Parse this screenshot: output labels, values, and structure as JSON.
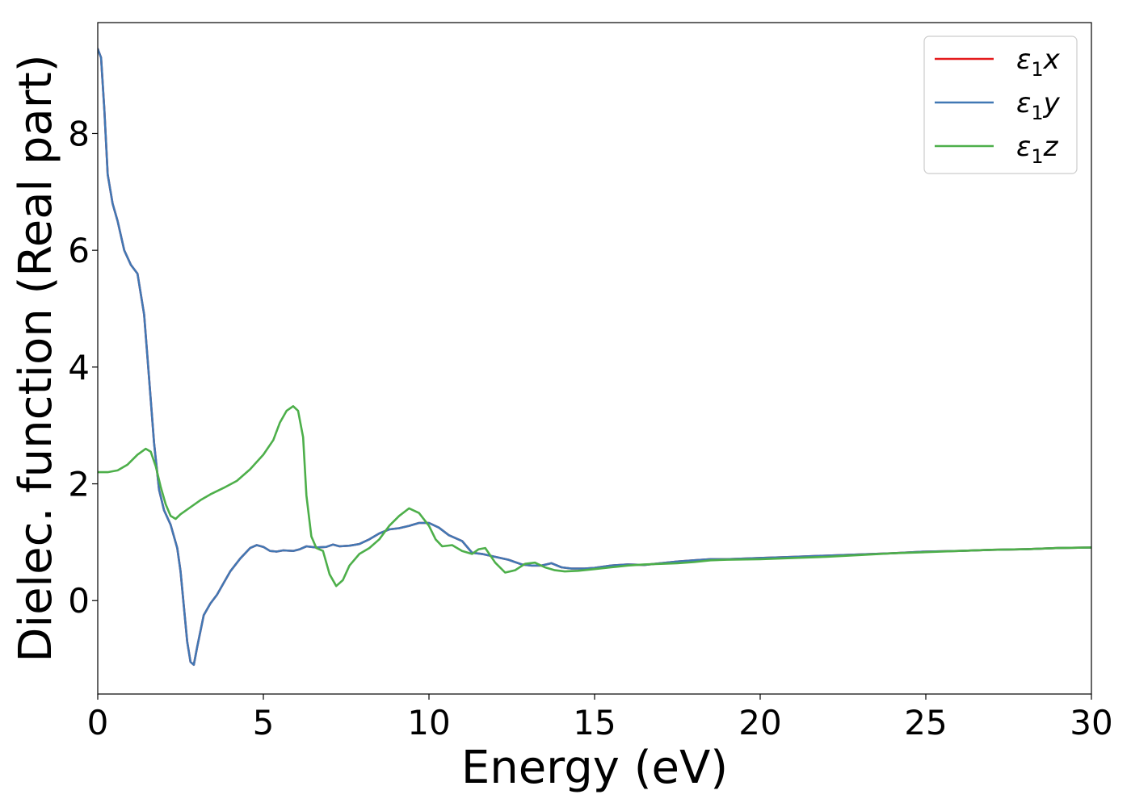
{
  "chart_data": {
    "type": "line",
    "xlabel": "Energy (eV)",
    "ylabel": "Dielec. function (Real part)",
    "xlim": [
      0,
      30
    ],
    "ylim": [
      -1.6,
      9.9
    ],
    "xticks": [
      0,
      5,
      10,
      15,
      20,
      25,
      30
    ],
    "yticks": [
      0,
      2,
      4,
      6,
      8
    ],
    "grid": false,
    "legend": "top-right",
    "series": [
      {
        "name": "ε₁x",
        "legend_base": "ε",
        "legend_sub": "1",
        "legend_var": "x",
        "color": "#e41a1c",
        "points": [
          [
            0,
            9.45
          ],
          [
            0.1,
            9.3
          ],
          [
            0.2,
            8.4
          ],
          [
            0.3,
            7.3
          ],
          [
            0.45,
            6.8
          ],
          [
            0.6,
            6.5
          ],
          [
            0.8,
            6.0
          ],
          [
            1.0,
            5.75
          ],
          [
            1.2,
            5.6
          ],
          [
            1.4,
            4.9
          ],
          [
            1.55,
            3.8
          ],
          [
            1.7,
            2.7
          ],
          [
            1.85,
            1.9
          ],
          [
            2.0,
            1.55
          ],
          [
            2.2,
            1.3
          ],
          [
            2.4,
            0.9
          ],
          [
            2.5,
            0.5
          ],
          [
            2.6,
            -0.1
          ],
          [
            2.7,
            -0.7
          ],
          [
            2.8,
            -1.05
          ],
          [
            2.9,
            -1.1
          ],
          [
            3.0,
            -0.8
          ],
          [
            3.2,
            -0.25
          ],
          [
            3.4,
            -0.05
          ],
          [
            3.6,
            0.1
          ],
          [
            3.8,
            0.3
          ],
          [
            4.0,
            0.5
          ],
          [
            4.3,
            0.72
          ],
          [
            4.6,
            0.9
          ],
          [
            4.8,
            0.95
          ],
          [
            5.0,
            0.92
          ],
          [
            5.2,
            0.85
          ],
          [
            5.4,
            0.84
          ],
          [
            5.6,
            0.86
          ],
          [
            5.9,
            0.85
          ],
          [
            6.1,
            0.88
          ],
          [
            6.3,
            0.93
          ],
          [
            6.6,
            0.91
          ],
          [
            6.9,
            0.92
          ],
          [
            7.1,
            0.96
          ],
          [
            7.3,
            0.93
          ],
          [
            7.6,
            0.94
          ],
          [
            7.9,
            0.97
          ],
          [
            8.2,
            1.05
          ],
          [
            8.5,
            1.15
          ],
          [
            8.8,
            1.22
          ],
          [
            9.1,
            1.24
          ],
          [
            9.4,
            1.28
          ],
          [
            9.7,
            1.33
          ],
          [
            10.0,
            1.33
          ],
          [
            10.3,
            1.25
          ],
          [
            10.6,
            1.12
          ],
          [
            11.0,
            1.02
          ],
          [
            11.3,
            0.82
          ],
          [
            11.6,
            0.8
          ],
          [
            12.0,
            0.75
          ],
          [
            12.4,
            0.7
          ],
          [
            12.8,
            0.62
          ],
          [
            13.1,
            0.6
          ],
          [
            13.4,
            0.6
          ],
          [
            13.7,
            0.64
          ],
          [
            14.0,
            0.57
          ],
          [
            14.3,
            0.55
          ],
          [
            14.7,
            0.55
          ],
          [
            15.0,
            0.56
          ],
          [
            15.5,
            0.6
          ],
          [
            16.0,
            0.62
          ],
          [
            16.5,
            0.61
          ],
          [
            17.0,
            0.64
          ],
          [
            17.5,
            0.67
          ],
          [
            18.0,
            0.69
          ],
          [
            18.5,
            0.71
          ],
          [
            19.0,
            0.71
          ],
          [
            19.5,
            0.72
          ],
          [
            20.0,
            0.73
          ],
          [
            21.0,
            0.75
          ],
          [
            22.0,
            0.77
          ],
          [
            23.0,
            0.79
          ],
          [
            24.0,
            0.81
          ],
          [
            25.0,
            0.84
          ],
          [
            26.0,
            0.85
          ],
          [
            27.0,
            0.87
          ],
          [
            28.0,
            0.88
          ],
          [
            29.0,
            0.9
          ],
          [
            30.0,
            0.91
          ]
        ]
      },
      {
        "name": "ε₁y",
        "legend_base": "ε",
        "legend_sub": "1",
        "legend_var": "y",
        "color": "#4178b4",
        "points": [
          [
            0,
            9.45
          ],
          [
            0.1,
            9.3
          ],
          [
            0.2,
            8.4
          ],
          [
            0.3,
            7.3
          ],
          [
            0.45,
            6.8
          ],
          [
            0.6,
            6.5
          ],
          [
            0.8,
            6.0
          ],
          [
            1.0,
            5.75
          ],
          [
            1.2,
            5.6
          ],
          [
            1.4,
            4.9
          ],
          [
            1.55,
            3.8
          ],
          [
            1.7,
            2.7
          ],
          [
            1.85,
            1.9
          ],
          [
            2.0,
            1.55
          ],
          [
            2.2,
            1.3
          ],
          [
            2.4,
            0.9
          ],
          [
            2.5,
            0.5
          ],
          [
            2.6,
            -0.1
          ],
          [
            2.7,
            -0.7
          ],
          [
            2.8,
            -1.05
          ],
          [
            2.9,
            -1.1
          ],
          [
            3.0,
            -0.8
          ],
          [
            3.2,
            -0.25
          ],
          [
            3.4,
            -0.05
          ],
          [
            3.6,
            0.1
          ],
          [
            3.8,
            0.3
          ],
          [
            4.0,
            0.5
          ],
          [
            4.3,
            0.72
          ],
          [
            4.6,
            0.9
          ],
          [
            4.8,
            0.95
          ],
          [
            5.0,
            0.92
          ],
          [
            5.2,
            0.85
          ],
          [
            5.4,
            0.84
          ],
          [
            5.6,
            0.86
          ],
          [
            5.9,
            0.85
          ],
          [
            6.1,
            0.88
          ],
          [
            6.3,
            0.93
          ],
          [
            6.6,
            0.91
          ],
          [
            6.9,
            0.92
          ],
          [
            7.1,
            0.96
          ],
          [
            7.3,
            0.93
          ],
          [
            7.6,
            0.94
          ],
          [
            7.9,
            0.97
          ],
          [
            8.2,
            1.05
          ],
          [
            8.5,
            1.15
          ],
          [
            8.8,
            1.22
          ],
          [
            9.1,
            1.24
          ],
          [
            9.4,
            1.28
          ],
          [
            9.7,
            1.33
          ],
          [
            10.0,
            1.33
          ],
          [
            10.3,
            1.25
          ],
          [
            10.6,
            1.12
          ],
          [
            11.0,
            1.02
          ],
          [
            11.3,
            0.82
          ],
          [
            11.6,
            0.8
          ],
          [
            12.0,
            0.75
          ],
          [
            12.4,
            0.7
          ],
          [
            12.8,
            0.62
          ],
          [
            13.1,
            0.6
          ],
          [
            13.4,
            0.6
          ],
          [
            13.7,
            0.64
          ],
          [
            14.0,
            0.57
          ],
          [
            14.3,
            0.55
          ],
          [
            14.7,
            0.55
          ],
          [
            15.0,
            0.56
          ],
          [
            15.5,
            0.6
          ],
          [
            16.0,
            0.62
          ],
          [
            16.5,
            0.61
          ],
          [
            17.0,
            0.64
          ],
          [
            17.5,
            0.67
          ],
          [
            18.0,
            0.69
          ],
          [
            18.5,
            0.71
          ],
          [
            19.0,
            0.71
          ],
          [
            19.5,
            0.72
          ],
          [
            20.0,
            0.73
          ],
          [
            21.0,
            0.75
          ],
          [
            22.0,
            0.77
          ],
          [
            23.0,
            0.79
          ],
          [
            24.0,
            0.81
          ],
          [
            25.0,
            0.84
          ],
          [
            26.0,
            0.85
          ],
          [
            27.0,
            0.87
          ],
          [
            28.0,
            0.88
          ],
          [
            29.0,
            0.9
          ],
          [
            30.0,
            0.91
          ]
        ]
      },
      {
        "name": "ε₁z",
        "legend_base": "ε",
        "legend_sub": "1",
        "legend_var": "z",
        "color": "#4daf4a",
        "points": [
          [
            0,
            2.2
          ],
          [
            0.3,
            2.2
          ],
          [
            0.6,
            2.23
          ],
          [
            0.9,
            2.33
          ],
          [
            1.2,
            2.5
          ],
          [
            1.45,
            2.6
          ],
          [
            1.6,
            2.55
          ],
          [
            1.75,
            2.3
          ],
          [
            1.9,
            1.95
          ],
          [
            2.05,
            1.65
          ],
          [
            2.2,
            1.45
          ],
          [
            2.35,
            1.4
          ],
          [
            2.5,
            1.48
          ],
          [
            2.8,
            1.6
          ],
          [
            3.1,
            1.72
          ],
          [
            3.4,
            1.82
          ],
          [
            3.8,
            1.93
          ],
          [
            4.2,
            2.05
          ],
          [
            4.6,
            2.25
          ],
          [
            5.0,
            2.5
          ],
          [
            5.3,
            2.75
          ],
          [
            5.5,
            3.05
          ],
          [
            5.7,
            3.25
          ],
          [
            5.9,
            3.33
          ],
          [
            6.05,
            3.25
          ],
          [
            6.2,
            2.8
          ],
          [
            6.3,
            1.8
          ],
          [
            6.45,
            1.1
          ],
          [
            6.6,
            0.9
          ],
          [
            6.8,
            0.85
          ],
          [
            7.0,
            0.45
          ],
          [
            7.2,
            0.25
          ],
          [
            7.4,
            0.35
          ],
          [
            7.6,
            0.6
          ],
          [
            7.9,
            0.8
          ],
          [
            8.2,
            0.9
          ],
          [
            8.5,
            1.05
          ],
          [
            8.8,
            1.28
          ],
          [
            9.1,
            1.45
          ],
          [
            9.4,
            1.58
          ],
          [
            9.7,
            1.5
          ],
          [
            10.0,
            1.28
          ],
          [
            10.2,
            1.05
          ],
          [
            10.4,
            0.93
          ],
          [
            10.7,
            0.95
          ],
          [
            11.0,
            0.85
          ],
          [
            11.3,
            0.8
          ],
          [
            11.5,
            0.88
          ],
          [
            11.7,
            0.9
          ],
          [
            12.0,
            0.65
          ],
          [
            12.3,
            0.48
          ],
          [
            12.6,
            0.52
          ],
          [
            12.9,
            0.63
          ],
          [
            13.2,
            0.65
          ],
          [
            13.5,
            0.57
          ],
          [
            13.8,
            0.52
          ],
          [
            14.1,
            0.5
          ],
          [
            14.5,
            0.51
          ],
          [
            15.0,
            0.54
          ],
          [
            15.5,
            0.57
          ],
          [
            16.0,
            0.6
          ],
          [
            16.5,
            0.62
          ],
          [
            17.0,
            0.63
          ],
          [
            17.5,
            0.64
          ],
          [
            18.0,
            0.66
          ],
          [
            18.5,
            0.69
          ],
          [
            19.0,
            0.7
          ],
          [
            20.0,
            0.71
          ],
          [
            21.0,
            0.73
          ],
          [
            22.0,
            0.75
          ],
          [
            23.0,
            0.78
          ],
          [
            24.0,
            0.81
          ],
          [
            25.0,
            0.83
          ],
          [
            26.0,
            0.85
          ],
          [
            27.0,
            0.87
          ],
          [
            28.0,
            0.88
          ],
          [
            29.0,
            0.9
          ],
          [
            30.0,
            0.91
          ]
        ]
      }
    ]
  }
}
